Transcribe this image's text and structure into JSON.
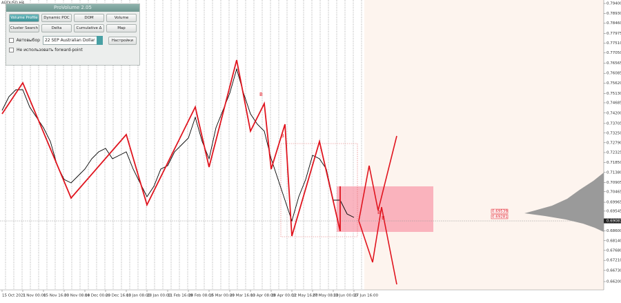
{
  "window": {
    "symbol": "AUDUSD,H4"
  },
  "panel": {
    "title": "ProVolume 2.05",
    "buttons": [
      "Volume Profile",
      "Dynamic POC",
      "DOM",
      "Volume",
      "Cluster Search",
      "Delta",
      "Cumulative Δ",
      "Map"
    ],
    "auto_select": "Автовыбор",
    "instrument": "22 SEP Australian Dollar",
    "settings": "Настройки",
    "no_forward": "Не использовать forward-point"
  },
  "chart_data": {
    "type": "line",
    "color": "#000000",
    "values": [
      0.74324,
      0.74979,
      0.75306,
      0.75306,
      0.74487,
      0.73996,
      0.73505,
      0.7285,
      0.71704,
      0.71049,
      0.70885,
      0.71212,
      0.7154,
      0.72031,
      0.72359,
      0.72522,
      0.72031,
      0.72195,
      0.72359,
      0.7154,
      0.70885,
      0.7023,
      0.70721,
      0.7154,
      0.71704,
      0.72359,
      0.72686,
      0.73014,
      0.73996,
      0.7285,
      0.72031,
      0.73505,
      0.74324,
      0.75142,
      0.76289,
      0.75142,
      0.7416,
      0.73669,
      0.73341,
      0.72031,
      0.71049,
      0.70066,
      0.69084,
      0.7023,
      0.71049,
      0.72195,
      0.72031,
      0.7154,
      0.70066,
      0.70066,
      0.69411,
      0.69247
    ],
    "zigzag": {
      "color": "#e0141e",
      "x": [
        0,
        3,
        10,
        18,
        21,
        28,
        30,
        34,
        36,
        38,
        39,
        41,
        42,
        46,
        49,
        49
      ],
      "values": [
        0.7416,
        0.75634,
        0.70168,
        0.73178,
        0.69841,
        0.74487,
        0.71638,
        0.76715,
        0.73341,
        0.74651,
        0.7154,
        0.73669,
        0.68363,
        0.7285,
        0.68593,
        0.70722
      ]
    },
    "annotations": [
      "B",
      "B",
      "B",
      "B"
    ],
    "xlim": [
      0,
      87.2
    ],
    "xticks": [
      {
        "value": 0,
        "label": "15 Oct 2021"
      },
      {
        "value": 3,
        "label": "1 Nov 00:00"
      },
      {
        "value": 6,
        "label": "15 Nov 16:00"
      },
      {
        "value": 9,
        "label": "30 Nov 08:00"
      },
      {
        "value": 12,
        "label": "14 Dec 00:00"
      },
      {
        "value": 15,
        "label": "29 Dec 16:00"
      },
      {
        "value": 18,
        "label": "13 Jan 08:00"
      },
      {
        "value": 21,
        "label": "28 Jan 00:00"
      },
      {
        "value": 24,
        "label": "11 Feb 16:00"
      },
      {
        "value": 27,
        "label": "28 Feb 08:00"
      },
      {
        "value": 30,
        "label": "15 Mar 00:00"
      },
      {
        "value": 33,
        "label": "29 Mar 16:00"
      },
      {
        "value": 36,
        "label": "13 Apr 08:00"
      },
      {
        "value": 39,
        "label": "28 Apr 00:00"
      },
      {
        "value": 42,
        "label": "12 May 16:00"
      },
      {
        "value": 45,
        "label": "27 May 08:00"
      },
      {
        "value": 48,
        "label": "13 Jun 00:00"
      },
      {
        "value": 51,
        "label": "27 Jun 16:00"
      }
    ],
    "ylim": [
      0.662,
      0.794
    ],
    "yticks": [
      {
        "value": 0.794,
        "label": "0.79400"
      },
      {
        "value": 0.7893,
        "label": "0.78930"
      },
      {
        "value": 0.7846,
        "label": "0.78460"
      },
      {
        "value": 0.77975,
        "label": "0.77975"
      },
      {
        "value": 0.7751,
        "label": "0.77510"
      },
      {
        "value": 0.7705,
        "label": "0.77050"
      },
      {
        "value": 0.76565,
        "label": "0.76565"
      },
      {
        "value": 0.76085,
        "label": "0.76085"
      },
      {
        "value": 0.7562,
        "label": "0.75620"
      },
      {
        "value": 0.7513,
        "label": "0.75130"
      },
      {
        "value": 0.74685,
        "label": "0.74685"
      },
      {
        "value": 0.742,
        "label": "0.74200"
      },
      {
        "value": 0.73705,
        "label": "0.73705"
      },
      {
        "value": 0.7325,
        "label": "0.73250"
      },
      {
        "value": 0.7279,
        "label": "0.72790"
      },
      {
        "value": 0.72325,
        "label": "0.72325"
      },
      {
        "value": 0.7185,
        "label": "0.71850"
      },
      {
        "value": 0.7138,
        "label": "0.71380"
      },
      {
        "value": 0.70905,
        "label": "0.70905"
      },
      {
        "value": 0.70465,
        "label": "0.70465"
      },
      {
        "value": 0.69965,
        "label": "0.69965"
      },
      {
        "value": 0.69545,
        "label": "0.69545"
      },
      {
        "value": 0.686,
        "label": "0.68600"
      },
      {
        "value": 0.6814,
        "label": "0.68140"
      },
      {
        "value": 0.6768,
        "label": "0.67680"
      },
      {
        "value": 0.6721,
        "label": "0.67210"
      },
      {
        "value": 0.6673,
        "label": "0.66730"
      },
      {
        "value": 0.662,
        "label": "0.66200"
      }
    ],
    "current_price": {
      "value": 0.69081,
      "label": "0.69081"
    },
    "price_tags": [
      {
        "value": 0.69539,
        "label": "0.69539"
      },
      {
        "value": 0.69281,
        "label": "0.69281"
      }
    ]
  }
}
